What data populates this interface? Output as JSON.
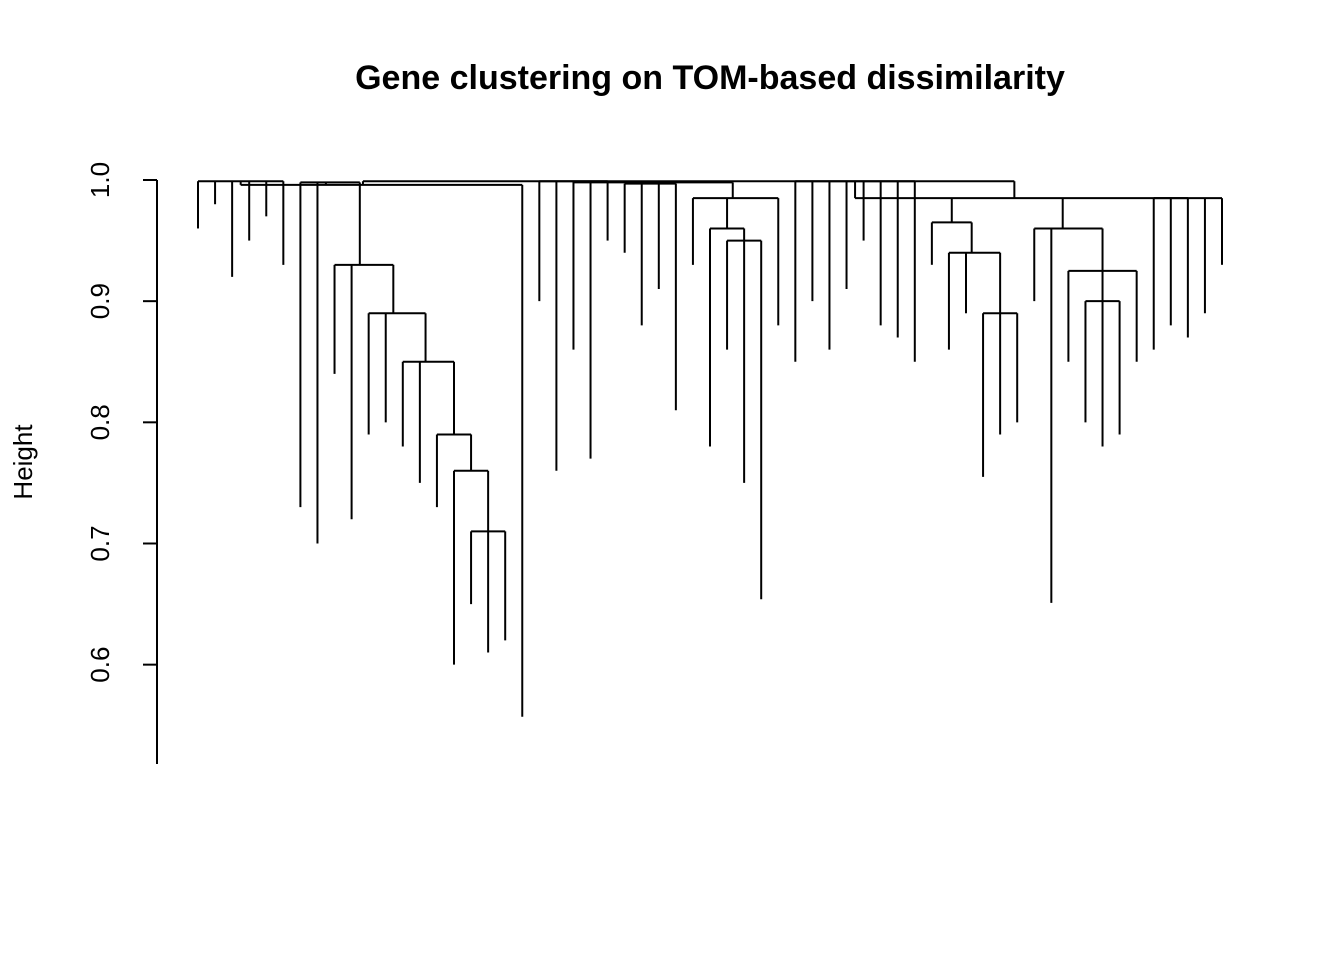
{
  "chart_data": {
    "type": "dendrogram",
    "title": "Gene clustering on TOM-based dissimilarity",
    "y_label": "Height",
    "ylim": [
      0.518,
      1.0
    ],
    "yticks": [
      0.6,
      0.7,
      0.8,
      0.9,
      {
        "value": 1.0,
        "label": "1.0"
      }
    ],
    "color": "#000000",
    "tree": {
      "height": 0.999,
      "children": [
        {
          "height": 0.996,
          "children": [
            {
              "height": 0.999,
              "children": [
                {
                  "height": 0.96
                },
                {
                  "height": 0.98
                },
                {
                  "height": 0.92
                },
                {
                  "height": 0.95
                },
                {
                  "height": 0.97
                },
                {
                  "height": 0.93
                }
              ]
            },
            {
              "height": 0.998,
              "children": [
                {
                  "height": 0.73
                },
                {
                  "height": 0.7
                },
                {
                  "height": 0.93,
                  "children": [
                    {
                      "height": 0.84
                    },
                    {
                      "height": 0.72
                    },
                    {
                      "height": 0.89,
                      "children": [
                        {
                          "height": 0.79
                        },
                        {
                          "height": 0.8
                        },
                        {
                          "height": 0.85,
                          "children": [
                            {
                              "height": 0.78
                            },
                            {
                              "height": 0.75
                            },
                            {
                              "height": 0.79,
                              "children": [
                                {
                                  "height": 0.73
                                },
                                {
                                  "height": 0.76,
                                  "children": [
                                    {
                                      "height": 0.6
                                    },
                                    {
                                      "height": 0.71,
                                      "children": [
                                        {
                                          "height": 0.65
                                        },
                                        {
                                          "height": 0.61
                                        },
                                        {
                                          "height": 0.62
                                        }
                                      ]
                                    }
                                  ]
                                }
                              ]
                            }
                          ]
                        }
                      ]
                    }
                  ]
                }
              ]
            },
            {
              "height": 0.557
            }
          ]
        },
        {
          "height": 0.998,
          "children": [
            {
              "height": 0.999,
              "children": [
                {
                  "height": 0.9
                },
                {
                  "height": 0.76
                },
                {
                  "height": 0.86
                },
                {
                  "height": 0.77
                },
                {
                  "height": 0.95
                }
              ]
            },
            {
              "height": 0.997,
              "children": [
                {
                  "height": 0.94
                },
                {
                  "height": 0.88
                },
                {
                  "height": 0.91
                },
                {
                  "height": 0.81
                }
              ]
            },
            {
              "height": 0.985,
              "children": [
                {
                  "height": 0.93
                },
                {
                  "height": 0.96,
                  "children": [
                    {
                      "height": 0.78
                    },
                    {
                      "height": 0.95,
                      "children": [
                        {
                          "height": 0.86
                        },
                        {
                          "height": 0.75
                        },
                        {
                          "height": 0.654
                        }
                      ]
                    }
                  ]
                },
                {
                  "height": 0.88
                }
              ]
            }
          ]
        },
        {
          "height": 0.985,
          "children": [
            {
              "height": 0.999,
              "children": [
                {
                  "height": 0.85
                },
                {
                  "height": 0.9
                },
                {
                  "height": 0.86
                },
                {
                  "height": 0.91
                },
                {
                  "height": 0.95
                },
                {
                  "height": 0.88
                },
                {
                  "height": 0.87
                },
                {
                  "height": 0.85
                }
              ]
            },
            {
              "height": 0.965,
              "children": [
                {
                  "height": 0.93
                },
                {
                  "height": 0.94,
                  "children": [
                    {
                      "height": 0.86
                    },
                    {
                      "height": 0.89
                    },
                    {
                      "height": 0.89,
                      "children": [
                        {
                          "height": 0.755
                        },
                        {
                          "height": 0.79
                        },
                        {
                          "height": 0.8
                        }
                      ]
                    }
                  ]
                }
              ]
            },
            {
              "height": 0.96,
              "children": [
                {
                  "height": 0.9
                },
                {
                  "height": 0.651
                },
                {
                  "height": 0.925,
                  "children": [
                    {
                      "height": 0.85
                    },
                    {
                      "height": 0.9,
                      "children": [
                        {
                          "height": 0.8
                        },
                        {
                          "height": 0.78
                        },
                        {
                          "height": 0.79
                        }
                      ]
                    },
                    {
                      "height": 0.85
                    }
                  ]
                }
              ]
            },
            {
              "height": 0.985,
              "children": [
                {
                  "height": 0.86
                },
                {
                  "height": 0.88
                },
                {
                  "height": 0.87
                },
                {
                  "height": 0.89
                },
                {
                  "height": 0.93
                }
              ]
            }
          ]
        }
      ]
    }
  }
}
